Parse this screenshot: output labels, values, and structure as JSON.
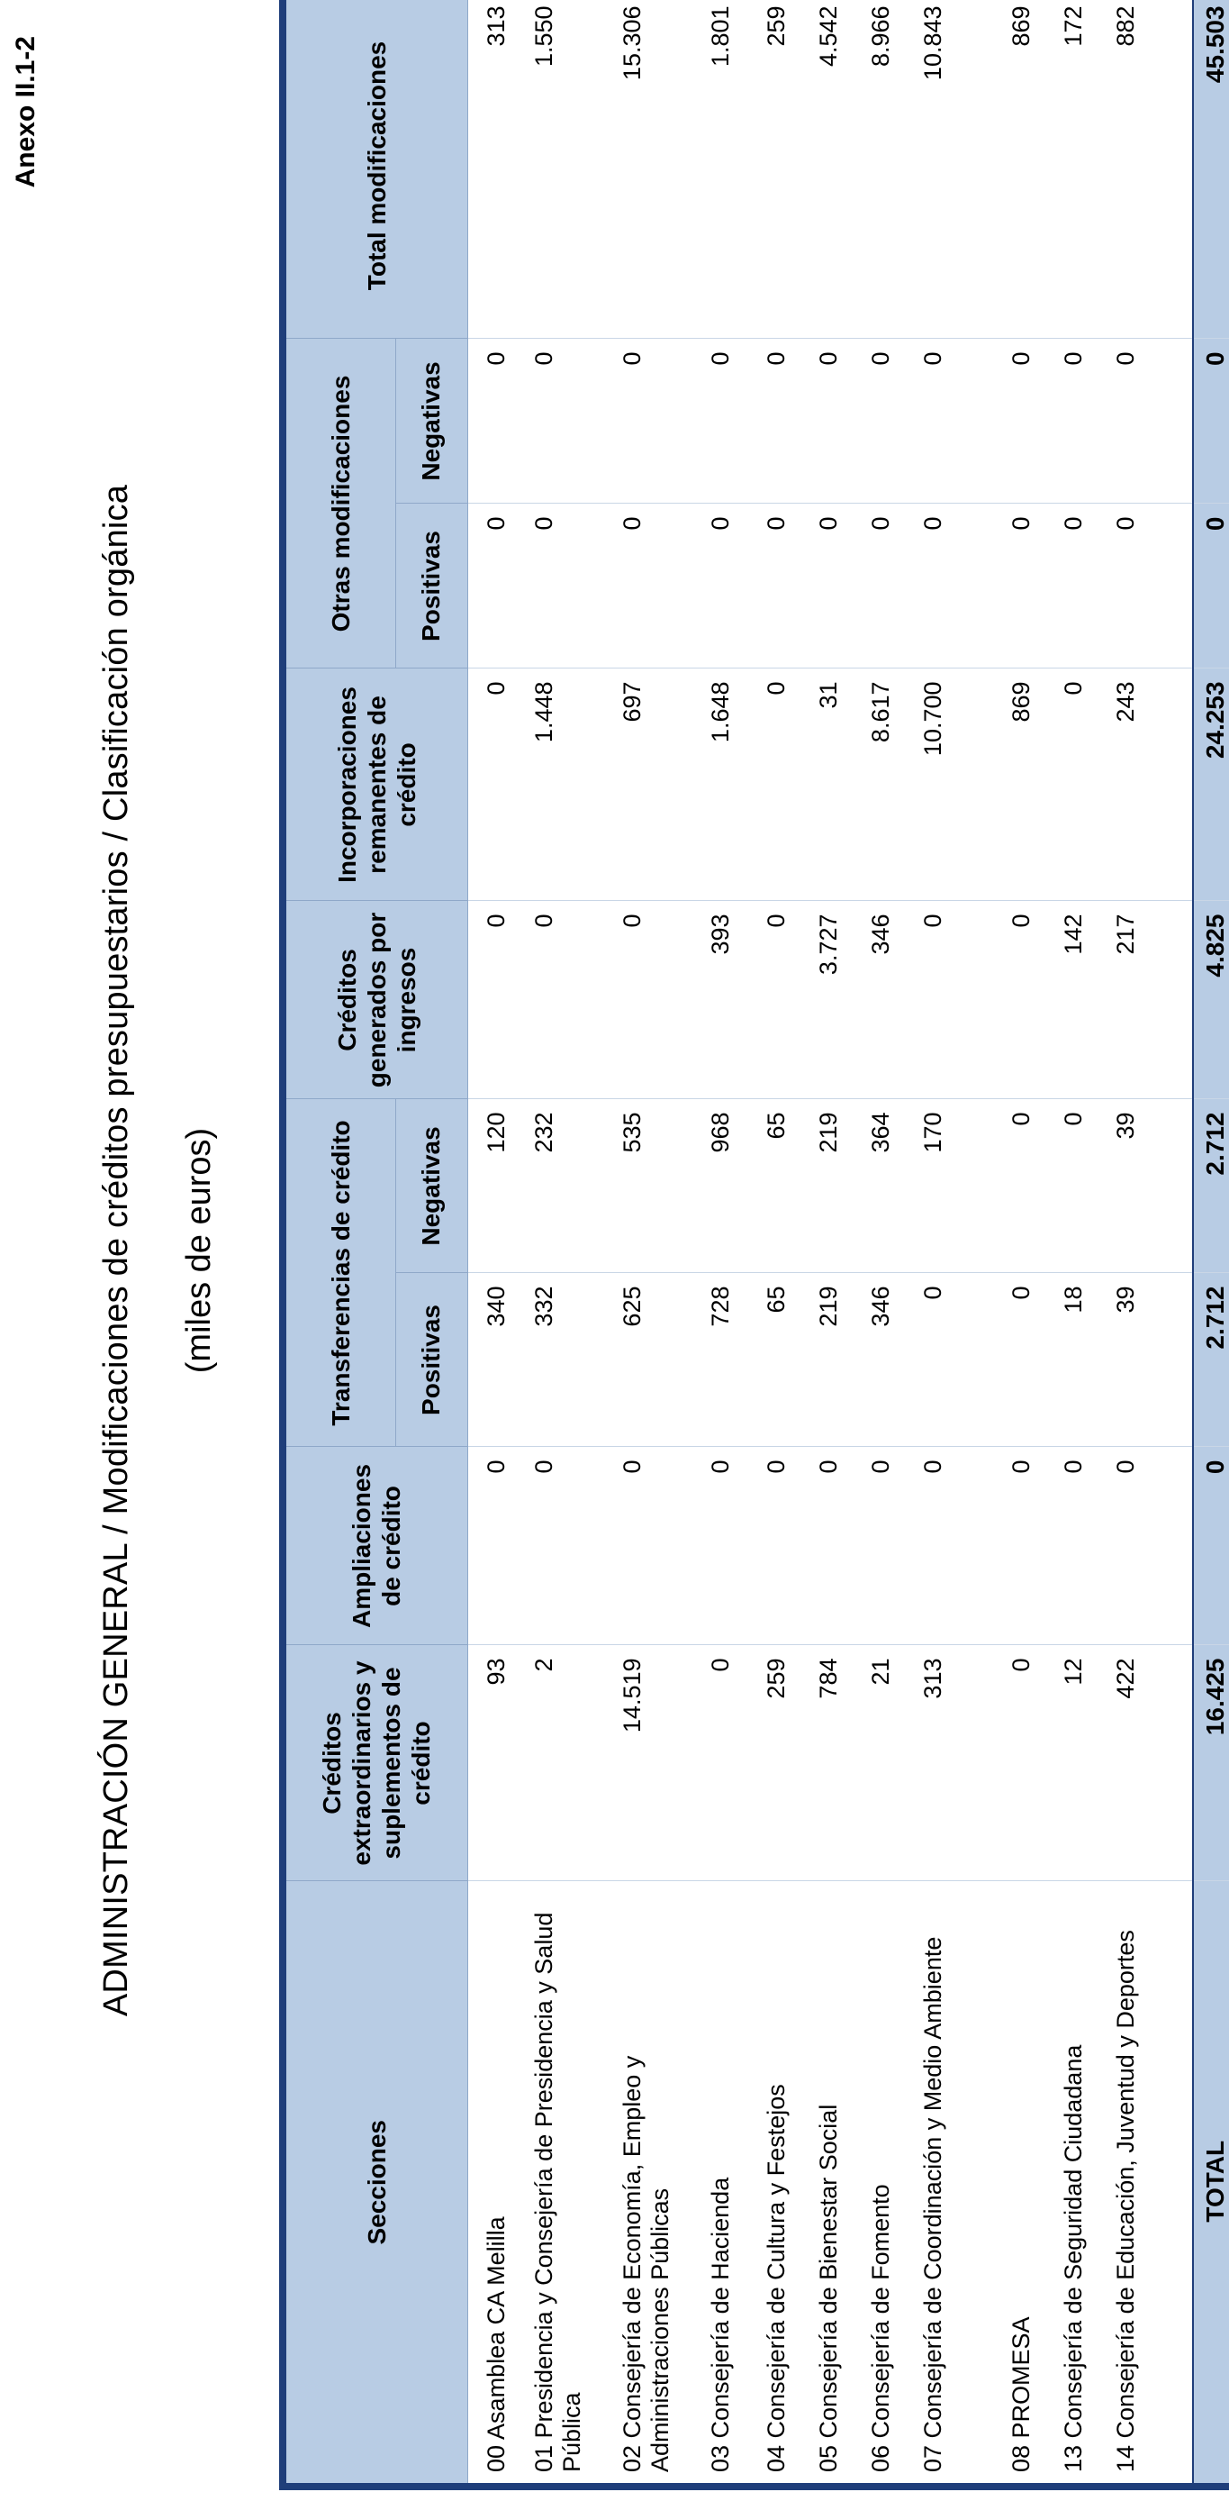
{
  "anexo": "Anexo II.1-2",
  "title": "ADMINISTRACIÓN GENERAL  /  Modificaciones de créditos presupuestarios  /  Clasificación orgánica",
  "subtitle": "(miles de euros)",
  "headers": {
    "secciones": "Secciones",
    "creditos_extra": "Créditos extraordinarios y suplementos de crédito",
    "ampliaciones": "Ampliaciones de crédito",
    "transferencias": "Transferencias de crédito",
    "positivas": "Positivas",
    "negativas": "Negativas",
    "generados": "Créditos generados por ingresos",
    "incorporaciones": "Incorporaciones remanentes de crédito",
    "otras": "Otras modificaciones",
    "otras_positivas": "Positivas",
    "otras_negativas": "Negativas",
    "total": "Total modificaciones"
  },
  "rows": [
    {
      "seccion": "00 Asamblea CA Melilla",
      "cred_extra": "93",
      "ampliaciones": "0",
      "trans_pos": "340",
      "trans_neg": "120",
      "generados": "0",
      "incorporaciones": "0",
      "otras_pos": "0",
      "otras_neg": "0",
      "total": "313"
    },
    {
      "seccion": "01 Presidencia y Consejería de Presidencia y Salud Pública",
      "cred_extra": "2",
      "ampliaciones": "0",
      "trans_pos": "332",
      "trans_neg": "232",
      "generados": "0",
      "incorporaciones": "1.448",
      "otras_pos": "0",
      "otras_neg": "0",
      "total": "1.550"
    },
    {
      "seccion": "02 Consejería de Economía, Empleo y Administraciones Públicas",
      "cred_extra": "14.519",
      "ampliaciones": "0",
      "trans_pos": "625",
      "trans_neg": "535",
      "generados": "0",
      "incorporaciones": "697",
      "otras_pos": "0",
      "otras_neg": "0",
      "total": "15.306"
    },
    {
      "seccion": "03 Consejería de Hacienda",
      "cred_extra": "0",
      "ampliaciones": "0",
      "trans_pos": "728",
      "trans_neg": "968",
      "generados": "393",
      "incorporaciones": "1.648",
      "otras_pos": "0",
      "otras_neg": "0",
      "total": "1.801"
    },
    {
      "seccion": "04 Consejería de Cultura y Festejos",
      "cred_extra": "259",
      "ampliaciones": "0",
      "trans_pos": "65",
      "trans_neg": "65",
      "generados": "0",
      "incorporaciones": "0",
      "otras_pos": "0",
      "otras_neg": "0",
      "total": "259"
    },
    {
      "seccion": "05 Consejería de Bienestar Social",
      "cred_extra": "784",
      "ampliaciones": "0",
      "trans_pos": "219",
      "trans_neg": "219",
      "generados": "3.727",
      "incorporaciones": "31",
      "otras_pos": "0",
      "otras_neg": "0",
      "total": "4.542"
    },
    {
      "seccion": "06 Consejería de Fomento",
      "cred_extra": "21",
      "ampliaciones": "0",
      "trans_pos": "346",
      "trans_neg": "364",
      "generados": "346",
      "incorporaciones": "8.617",
      "otras_pos": "0",
      "otras_neg": "0",
      "total": "8.966"
    },
    {
      "seccion": "07 Consejería de Coordinación y Medio Ambiente",
      "cred_extra": "313",
      "ampliaciones": "0",
      "trans_pos": "0",
      "trans_neg": "170",
      "generados": "0",
      "incorporaciones": "10.700",
      "otras_pos": "0",
      "otras_neg": "0",
      "total": "10.843"
    },
    {
      "seccion": "08 PROMESA",
      "cred_extra": "0",
      "ampliaciones": "0",
      "trans_pos": "0",
      "trans_neg": "0",
      "generados": "0",
      "incorporaciones": "869",
      "otras_pos": "0",
      "otras_neg": "0",
      "total": "869"
    },
    {
      "seccion": "13 Consejería de Seguridad Ciudadana",
      "cred_extra": "12",
      "ampliaciones": "0",
      "trans_pos": "18",
      "trans_neg": "0",
      "generados": "142",
      "incorporaciones": "0",
      "otras_pos": "0",
      "otras_neg": "0",
      "total": "172"
    },
    {
      "seccion": "14 Consejería de Educación, Juventud y Deportes",
      "cred_extra": "422",
      "ampliaciones": "0",
      "trans_pos": "39",
      "trans_neg": "39",
      "generados": "217",
      "incorporaciones": "243",
      "otras_pos": "0",
      "otras_neg": "0",
      "total": "882"
    }
  ],
  "totals": {
    "label": "TOTAL",
    "cred_extra": "16.425",
    "ampliaciones": "0",
    "trans_pos": "2.712",
    "trans_neg": "2.712",
    "generados": "4.825",
    "incorporaciones": "24.253",
    "otras_pos": "0",
    "otras_neg": "0",
    "total": "45.503"
  }
}
